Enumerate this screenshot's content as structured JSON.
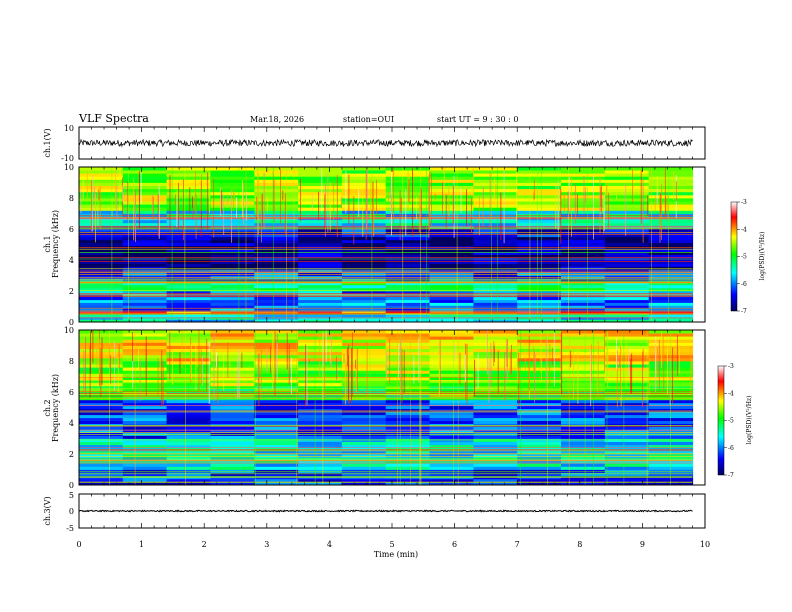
{
  "header": {
    "title": "VLF Spectra",
    "date": "Mar.18, 2026",
    "station": "station=OUI",
    "start_ut": "start  UT  =   9  : 30 : 0"
  },
  "panels": {
    "ch1_waveform": {
      "ylabel": "ch.1(V)",
      "yticks": [
        "10",
        "-10"
      ]
    },
    "ch1_spectrogram": {
      "ylabel_line1": "ch.1",
      "ylabel_line2": "Frequency (kHz)",
      "yticks": [
        "0",
        "2",
        "4",
        "6",
        "8",
        "10"
      ]
    },
    "ch2_spectrogram": {
      "ylabel_line1": "ch.2",
      "ylabel_line2": "Frequency (kHz)",
      "yticks": [
        "0",
        "2",
        "4",
        "6",
        "8",
        "10"
      ]
    },
    "ch3_waveform": {
      "ylabel": "ch.3(V)",
      "yticks": [
        "5",
        "0",
        "-5"
      ]
    },
    "xaxis": {
      "label": "Time (min)",
      "ticks": [
        "0",
        "1",
        "2",
        "3",
        "4",
        "5",
        "6",
        "7",
        "8",
        "9",
        "10"
      ]
    }
  },
  "colorbars": [
    {
      "label": "log(PSD)(V²/Hz)",
      "ticks": [
        "-3",
        "-4",
        "-5",
        "-6",
        "-7"
      ]
    },
    {
      "label": "log(PSD)(V²/Hz)",
      "ticks": [
        "-3",
        "-4",
        "-5",
        "-6",
        "-7"
      ]
    }
  ],
  "colors": {
    "cmap_low": "#000080",
    "cmap_mid_low": "#0000ff",
    "cmap_mid": "#00ffff",
    "cmap_mid_high": "#00ff00",
    "cmap_high_mid": "#ffff00",
    "cmap_high": "#ff0000",
    "cmap_top": "#ffffff"
  },
  "chart_data": [
    {
      "type": "line",
      "name": "ch.1 waveform",
      "xlabel": "Time (min)",
      "ylabel": "ch.1(V)",
      "xlim": [
        0,
        10
      ],
      "ylim": [
        -10,
        10
      ],
      "description_values": {
        "mean_V": 0,
        "amplitude_V": 2,
        "range_end_min": 9.8
      }
    },
    {
      "type": "heatmap",
      "name": "ch.1 spectrogram",
      "xlabel": "Time (min)",
      "ylabel": "Frequency (kHz)",
      "xlim": [
        0,
        10
      ],
      "ylim": [
        0,
        10
      ],
      "colorbar": {
        "label": "log(PSD)(V²/Hz)",
        "range": [
          -7,
          -3
        ]
      },
      "data_end_min": 9.8,
      "bands": [
        {
          "freq_kHz": [
            0,
            0.5
          ],
          "level": -5.6
        },
        {
          "freq_kHz": [
            0.5,
            0.7
          ],
          "level": -3.8
        },
        {
          "freq_kHz": [
            0.7,
            2.0
          ],
          "level": -6.0
        },
        {
          "freq_kHz": [
            2.0,
            2.6
          ],
          "level": -5.2
        },
        {
          "freq_kHz": [
            2.6,
            3.4
          ],
          "level": -6.2
        },
        {
          "freq_kHz": [
            3.4,
            5.5
          ],
          "level": -6.8
        },
        {
          "freq_kHz": [
            5.5,
            6.2
          ],
          "level": -6.4
        },
        {
          "freq_kHz": [
            6.2,
            7.2
          ],
          "level": -5.6
        },
        {
          "freq_kHz": [
            7.2,
            10.0
          ],
          "level": -4.6
        }
      ]
    },
    {
      "type": "heatmap",
      "name": "ch.2 spectrogram",
      "xlabel": "Time (min)",
      "ylabel": "Frequency (kHz)",
      "xlim": [
        0,
        10
      ],
      "ylim": [
        0,
        10
      ],
      "colorbar": {
        "label": "log(PSD)(V²/Hz)",
        "range": [
          -7,
          -3
        ]
      },
      "data_end_min": 9.8,
      "bands": [
        {
          "freq_kHz": [
            0,
            1.0
          ],
          "level": -6.3
        },
        {
          "freq_kHz": [
            1.0,
            3.0
          ],
          "level": -5.6
        },
        {
          "freq_kHz": [
            3.0,
            5.5
          ],
          "level": -6.2
        },
        {
          "freq_kHz": [
            5.5,
            6.4
          ],
          "level": -4.9
        },
        {
          "freq_kHz": [
            6.4,
            8.0
          ],
          "level": -4.6
        },
        {
          "freq_kHz": [
            8.0,
            10.0
          ],
          "level": -4.3
        }
      ]
    },
    {
      "type": "line",
      "name": "ch.3 waveform",
      "xlabel": "Time (min)",
      "ylabel": "ch.3(V)",
      "xlim": [
        0,
        10
      ],
      "ylim": [
        -5,
        5
      ],
      "description_values": {
        "mean_V": 0,
        "amplitude_V": 0.2,
        "range_end_min": 9.8
      }
    }
  ]
}
